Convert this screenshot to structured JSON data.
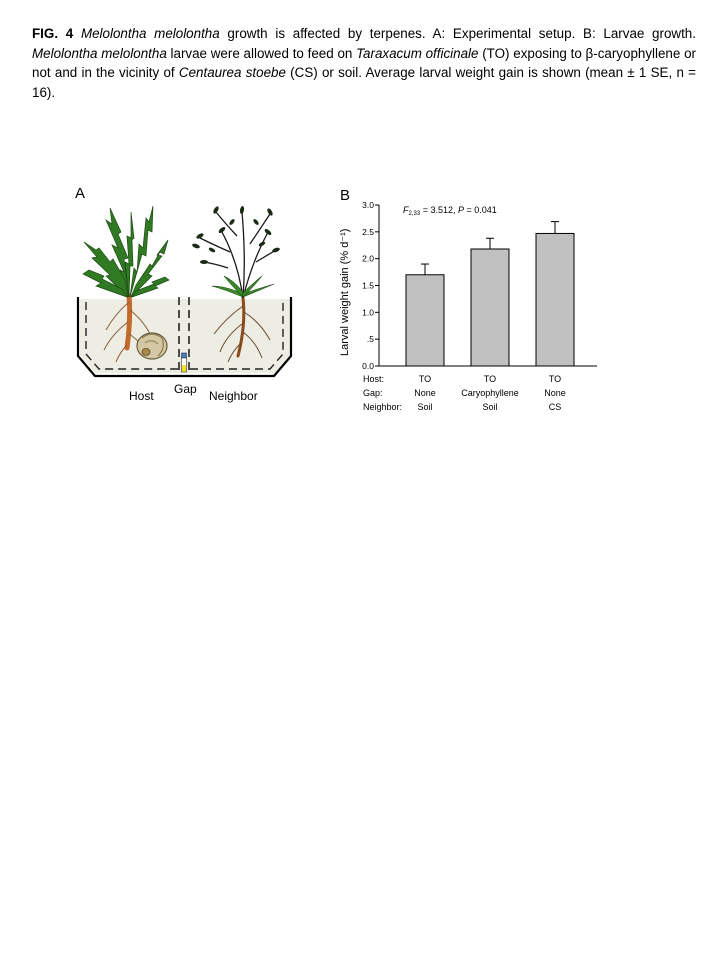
{
  "caption": {
    "fig_label": "FIG. 4",
    "species_1": "Melolontha melolontha",
    "text_1": " growth is affected by terpenes. A: Experimental setup. B: Larvae growth. ",
    "species_2": "Melolontha melolontha",
    "text_2": " larvae were allowed to feed on ",
    "species_3": "Taraxacum officinale",
    "text_3": " (TO) exposing to β-caryophyllene or not and in the vicinity of ",
    "species_4": "Centaurea stoebe",
    "text_4": " (CS) or soil. Average larval weight gain is shown (mean ± 1 SE, n = 16)."
  },
  "panel_a": {
    "label": "A",
    "host_label": "Host",
    "gap_label": "Gap",
    "neighbor_label": "Neighbor"
  },
  "panel_b": {
    "label": "B",
    "stat_f": "F",
    "stat_df": "2,33",
    "stat_rest": " = 3.512, ",
    "stat_p": "P",
    "stat_p_rest": " = 0.041",
    "row_labels": [
      "Host:",
      "Gap:",
      "Neighbor:"
    ]
  },
  "chart_data": {
    "type": "bar",
    "title": "",
    "xlabel": "",
    "ylabel": "Larval weight gain (% d⁻¹)",
    "ylim": [
      0,
      3.0
    ],
    "yticks": [
      "0.0",
      ".5",
      "1.0",
      "1.5",
      "2.0",
      "2.5",
      "3.0"
    ],
    "ytick_values": [
      0,
      0.5,
      1.0,
      1.5,
      2.0,
      2.5,
      3.0
    ],
    "categories": [
      {
        "host": "TO",
        "gap": "None",
        "neighbor": "Soil"
      },
      {
        "host": "TO",
        "gap": "Caryophyllene",
        "neighbor": "Soil"
      },
      {
        "host": "TO",
        "gap": "None",
        "neighbor": "CS"
      }
    ],
    "series": [
      {
        "values": [
          1.7,
          2.18,
          2.47
        ],
        "errors": [
          0.2,
          0.2,
          0.22
        ]
      }
    ],
    "bar_color": "#c0c0c0",
    "grid": false
  }
}
